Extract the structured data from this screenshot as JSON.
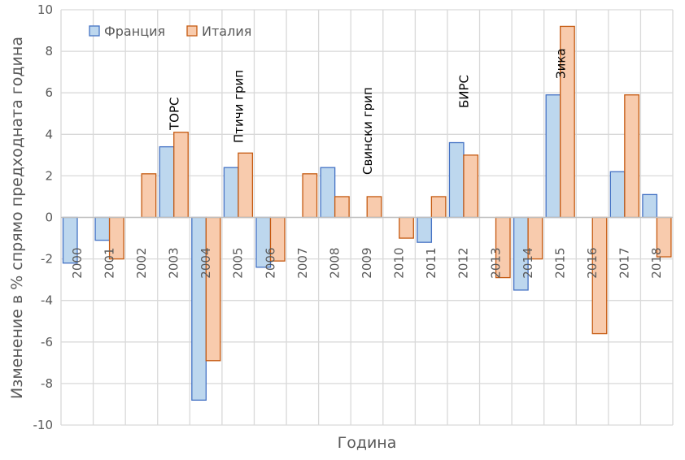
{
  "chart_data": {
    "type": "bar",
    "title": "",
    "xlabel": "Година",
    "ylabel": "Изменение в % спрямо предходната година",
    "ylim": [
      -10,
      10
    ],
    "yticks": [
      10,
      8,
      6,
      4,
      2,
      0,
      -2,
      -4,
      -6,
      -8,
      -10
    ],
    "ytick_labels": [
      "10",
      "8",
      "6",
      "4",
      "2",
      "0",
      "-2",
      "-4",
      "-6",
      "-8",
      "-10"
    ],
    "grid": true,
    "legend_position": "top-left",
    "categories": [
      "2000",
      "2001",
      "2002",
      "2003",
      "2004",
      "2005",
      "2006",
      "2007",
      "2008",
      "2009",
      "2010",
      "2011",
      "2012",
      "2013",
      "2014",
      "2015",
      "2016",
      "2017",
      "2018"
    ],
    "series": [
      {
        "name": "Франция",
        "fill": "#bdd7ee",
        "stroke": "#4472c4",
        "values": [
          -2.2,
          -1.1,
          0,
          3.4,
          -8.8,
          2.4,
          -2.4,
          0,
          2.4,
          0,
          0,
          -1.2,
          3.6,
          0,
          -3.5,
          5.9,
          0,
          2.2,
          1.1
        ]
      },
      {
        "name": "Италия",
        "fill": "#f8cbad",
        "stroke": "#c55a11",
        "values": [
          0,
          -2.0,
          2.1,
          4.1,
          -6.9,
          3.1,
          -2.1,
          2.1,
          1.0,
          1.0,
          -1.0,
          1.0,
          3.0,
          -2.9,
          -2.0,
          9.2,
          -5.6,
          5.9,
          -1.9
        ]
      }
    ],
    "annotations": [
      {
        "text": "ТОРС",
        "category": "2003"
      },
      {
        "text": "Птичи грип",
        "category": "2005"
      },
      {
        "text": "Свински грип",
        "category": "2009"
      },
      {
        "text": "БИРС",
        "category": "2012"
      },
      {
        "text": "Зика",
        "category": "2015"
      }
    ]
  }
}
